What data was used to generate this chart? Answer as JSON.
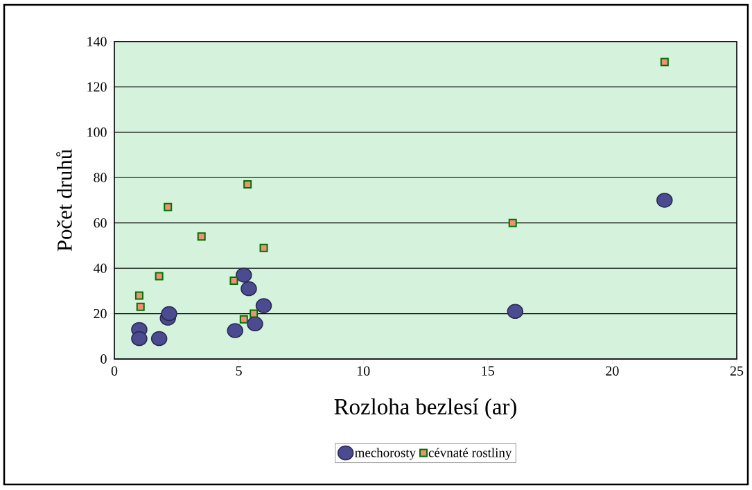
{
  "chart_data": {
    "type": "scatter",
    "xlabel": "Rozloha bezlesí (ar)",
    "ylabel": "Počet druhů",
    "series": [
      {
        "name": "mechorosty",
        "color": "#4b4b91",
        "marker": "circle",
        "x": [
          1.0,
          1.0,
          1.8,
          2.15,
          2.2,
          4.85,
          5.2,
          5.4,
          5.65,
          6.0,
          16.1,
          22.1
        ],
        "values": [
          13,
          9,
          9,
          18,
          20,
          12.5,
          37,
          31,
          15.5,
          23.5,
          21,
          70
        ]
      },
      {
        "name": "cévnaté rostliny",
        "color": "#f29077",
        "marker": "square",
        "x": [
          1.0,
          1.05,
          1.8,
          2.15,
          3.5,
          4.8,
          5.2,
          5.35,
          5.6,
          6.0,
          16.0,
          22.1
        ],
        "values": [
          28,
          23,
          36.5,
          67,
          54,
          34.5,
          17.5,
          77,
          20,
          49,
          60,
          131
        ]
      }
    ],
    "xlim": [
      0,
      25
    ],
    "ylim": [
      0,
      140
    ],
    "xticks": [
      0,
      5,
      10,
      15,
      20,
      25
    ],
    "yticks": [
      0,
      20,
      40,
      60,
      80,
      100,
      120,
      140
    ],
    "grid": "y",
    "legend": "bottom"
  }
}
